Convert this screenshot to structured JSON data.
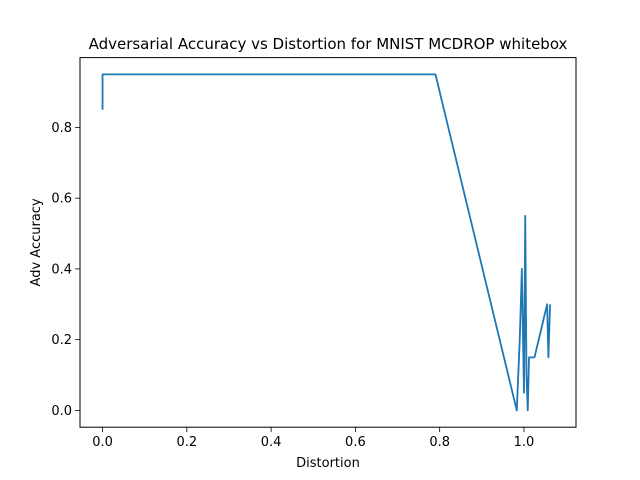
{
  "chart_data": {
    "type": "line",
    "title": "Adversarial Accuracy vs Distortion for MNIST MCDROP whitebox",
    "xlabel": "Distortion",
    "ylabel": "Adv Accuracy",
    "xlim": [
      -0.0535,
      1.1235
    ],
    "ylim": [
      -0.0475,
      0.9975
    ],
    "grid": false,
    "xticks": [
      0.0,
      0.2,
      0.4,
      0.6,
      0.8,
      1.0
    ],
    "xtick_labels": [
      "0.0",
      "0.2",
      "0.4",
      "0.6",
      "0.8",
      "1.0"
    ],
    "yticks": [
      0.0,
      0.2,
      0.4,
      0.6,
      0.8
    ],
    "ytick_labels": [
      "0.0",
      "0.2",
      "0.4",
      "0.6",
      "0.8"
    ],
    "series": [
      {
        "color": "#1f77b4",
        "x": [
          0.0,
          0.0,
          0.79,
          0.983,
          0.99,
          0.995,
          1.0,
          1.003,
          1.006,
          1.009,
          1.012,
          1.025,
          1.045,
          1.055,
          1.058,
          1.062
        ],
        "y": [
          0.85,
          0.95,
          0.95,
          0.0,
          0.2,
          0.4,
          0.05,
          0.55,
          0.1,
          0.0,
          0.15,
          0.15,
          0.25,
          0.3,
          0.15,
          0.3
        ]
      }
    ]
  }
}
